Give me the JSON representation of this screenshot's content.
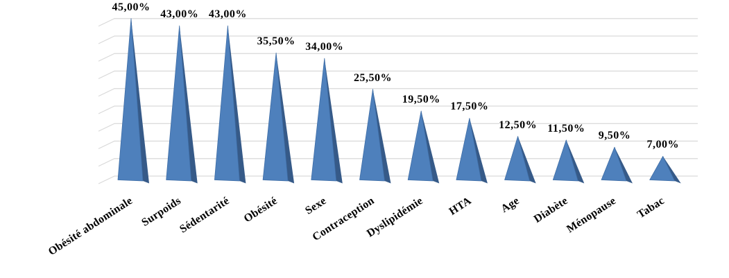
{
  "chart_data": {
    "type": "bar",
    "subtype": "3d-pyramid",
    "title": "",
    "xlabel": "",
    "ylabel": "",
    "categories": [
      "Obésité abdominale",
      "Surpoids",
      "Sédentarité",
      "Obésité",
      "Sexe",
      "Contraception",
      "Dyslipidémie",
      "HTA",
      "Age",
      "Diabète",
      "Ménopause",
      "Tabac"
    ],
    "values": [
      45.0,
      43.0,
      43.0,
      35.5,
      34.0,
      25.5,
      19.5,
      17.5,
      12.5,
      11.5,
      9.5,
      7.0
    ],
    "value_labels": [
      "45,00%",
      "43,00%",
      "43,00%",
      "35,50%",
      "34,00%",
      "25,50%",
      "19,50%",
      "17,50%",
      "12,50%",
      "11,50%",
      "9,50%",
      "7,00%"
    ],
    "ylim": [
      0,
      45
    ],
    "gridline_step": 5,
    "grid": true,
    "legend": false,
    "value_axis_labels_visible": false,
    "colors": {
      "pyramid_front": "#4E80BC",
      "pyramid_side": "#365A88",
      "pyramid_edge": "#3E6DA6",
      "gridline": "#D9D9D9",
      "label_text": "#000000",
      "background": "#FFFFFF"
    }
  }
}
